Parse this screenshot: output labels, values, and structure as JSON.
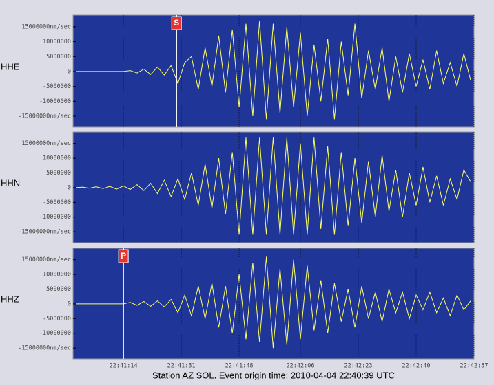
{
  "caption": "Station AZ SOL.  Event origin time: 2010-04-04 22:40:39 UTC",
  "chart_data": [
    {
      "type": "line",
      "label": "HHE",
      "color": "#ffff66",
      "xlim": [
        20.2,
        138
      ],
      "ylim": [
        -18700000,
        18900000
      ],
      "yticks": [
        {
          "value": 15000000,
          "label": "15000000nm/sec"
        },
        10000000,
        5000000,
        0,
        -5000000,
        -10000000,
        {
          "value": -15000000,
          "label": "-15000000nm/sec"
        }
      ],
      "picks": [
        {
          "label": "S",
          "x": 50.6
        }
      ],
      "x": [
        21,
        23,
        25,
        27,
        29,
        31,
        33,
        35,
        37,
        39,
        41,
        43,
        45,
        47,
        49,
        51,
        53,
        55,
        57,
        59,
        61,
        63,
        65,
        67,
        69,
        71,
        73,
        75,
        77,
        79,
        81,
        83,
        85,
        87,
        89,
        91,
        93,
        95,
        97,
        99,
        101,
        103,
        105,
        107,
        109,
        111,
        113,
        115,
        117,
        119,
        121,
        123,
        125,
        127,
        129,
        131,
        133,
        135,
        137
      ],
      "values": [
        0,
        0,
        0,
        0,
        0,
        0,
        0,
        0,
        300000.0,
        -500000.0,
        800000.0,
        -1000000.0,
        1500000.0,
        -1200000.0,
        2000000.0,
        -4000000.0,
        3000000.0,
        5000000.0,
        -6000000.0,
        8000000.0,
        -5000000.0,
        12000000.0,
        -7000000.0,
        14000000.0,
        -12000000.0,
        16000000.0,
        -15000000.0,
        17000000.0,
        -16000000.0,
        16000000.0,
        -14000000.0,
        15000000.0,
        -12000000.0,
        13000000.0,
        -15000000.0,
        9000000.0,
        -10000000.0,
        11000000.0,
        -16000000.0,
        10000000.0,
        -8000000.0,
        16000000.0,
        -9000000.0,
        7000000.0,
        -6000000.0,
        8000000.0,
        -10000000.0,
        5000000.0,
        -7000000.0,
        6000000.0,
        -5000000.0,
        4000000.0,
        -6000000.0,
        7000000.0,
        -4000000.0,
        3000000.0,
        -5000000.0,
        6000000.0,
        -3000000.0
      ]
    },
    {
      "type": "line",
      "label": "HHN",
      "color": "#ffff66",
      "xlim": [
        20.2,
        138
      ],
      "ylim": [
        -18700000,
        18900000
      ],
      "yticks": [
        {
          "value": 15000000,
          "label": "15000000nm/sec"
        },
        10000000,
        5000000,
        0,
        -5000000,
        -10000000,
        {
          "value": -15000000,
          "label": "-15000000nm/sec"
        }
      ],
      "x": [
        21,
        23,
        25,
        27,
        29,
        31,
        33,
        35,
        37,
        39,
        41,
        43,
        45,
        47,
        49,
        51,
        53,
        55,
        57,
        59,
        61,
        63,
        65,
        67,
        69,
        71,
        73,
        75,
        77,
        79,
        81,
        83,
        85,
        87,
        89,
        91,
        93,
        95,
        97,
        99,
        101,
        103,
        105,
        107,
        109,
        111,
        113,
        115,
        117,
        119,
        121,
        123,
        125,
        127,
        129,
        131,
        133,
        135,
        137
      ],
      "values": [
        0,
        200000.0,
        -200000.0,
        300000.0,
        -300000.0,
        400000.0,
        -500000.0,
        600000.0,
        -600000.0,
        1000000.0,
        -1000000.0,
        1500000.0,
        -2000000.0,
        2500000.0,
        -3000000.0,
        3000000.0,
        -4000000.0,
        5000000.0,
        -6000000.0,
        8000000.0,
        -7000000.0,
        10000000.0,
        -9000000.0,
        12000000.0,
        -16000000.0,
        17000000.0,
        -16000000.0,
        17000000.0,
        -16000000.0,
        17000000.0,
        -16000000.0,
        17000000.0,
        -16000000.0,
        15000000.0,
        -16000000.0,
        17000000.0,
        -14000000.0,
        14000000.0,
        -16000000.0,
        12000000.0,
        -13000000.0,
        10000000.0,
        -12000000.0,
        9000000.0,
        -10000000.0,
        11000000.0,
        -8000000.0,
        6000000.0,
        -10000000.0,
        5000000.0,
        -6000000.0,
        7000000.0,
        -5000000.0,
        4000000.0,
        -6000000.0,
        3000000.0,
        -4000000.0,
        6000000.0,
        2000000.0
      ]
    },
    {
      "type": "line",
      "label": "HHZ",
      "color": "#ffff66",
      "xlim": [
        20.2,
        138
      ],
      "ylim": [
        -18700000,
        18900000
      ],
      "yticks": [
        {
          "value": 15000000,
          "label": "15000000nm/sec"
        },
        10000000,
        5000000,
        0,
        -5000000,
        -10000000,
        {
          "value": -15000000,
          "label": "-15000000nm/sec"
        }
      ],
      "xticks": [
        {
          "value": 35,
          "label": "22:41:14"
        },
        {
          "value": 52,
          "label": "22:41:31"
        },
        {
          "value": 69,
          "label": "22:41:48"
        },
        {
          "value": 87,
          "label": "22:42:06"
        },
        {
          "value": 104,
          "label": "22:42:23"
        },
        {
          "value": 121,
          "label": "22:42:40"
        },
        {
          "value": 138,
          "label": "22:42:57"
        }
      ],
      "picks": [
        {
          "label": "P",
          "x": 35
        }
      ],
      "x": [
        21,
        23,
        25,
        27,
        29,
        31,
        33,
        35,
        37,
        39,
        41,
        43,
        45,
        47,
        49,
        51,
        53,
        55,
        57,
        59,
        61,
        63,
        65,
        67,
        69,
        71,
        73,
        75,
        77,
        79,
        81,
        83,
        85,
        87,
        89,
        91,
        93,
        95,
        97,
        99,
        101,
        103,
        105,
        107,
        109,
        111,
        113,
        115,
        117,
        119,
        121,
        123,
        125,
        127,
        129,
        131,
        133,
        135,
        137
      ],
      "values": [
        0,
        0,
        0,
        0,
        0,
        0,
        0,
        0,
        500000.0,
        -500000.0,
        800000.0,
        -800000.0,
        1000000.0,
        -1000000.0,
        1500000.0,
        -3000000.0,
        3000000.0,
        -4000000.0,
        6000000.0,
        -5000000.0,
        7000000.0,
        -8000000.0,
        6000000.0,
        -10000000.0,
        10000000.0,
        -12000000.0,
        14000000.0,
        -13000000.0,
        16000000.0,
        -15000000.0,
        12000000.0,
        -14000000.0,
        15000000.0,
        -12000000.0,
        13000000.0,
        -9000000.0,
        8000000.0,
        -10000000.0,
        7000000.0,
        -6000000.0,
        5000000.0,
        -8000000.0,
        6000000.0,
        -5000000.0,
        4000000.0,
        -6000000.0,
        5000000.0,
        -3000000.0,
        4000000.0,
        -5000000.0,
        3000000.0,
        -2000000.0,
        4000000.0,
        -3000000.0,
        2000000.0,
        -4000000.0,
        3000000.0,
        -2000000.0,
        1000000.0
      ]
    }
  ]
}
